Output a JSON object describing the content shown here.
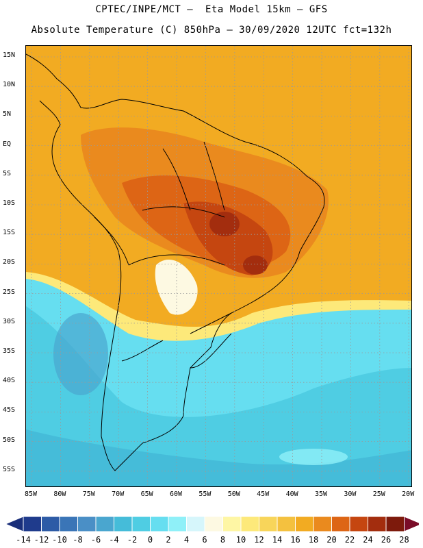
{
  "header": {
    "line1": "CPTEC/INPE/MCT –  Eta Model 15km – GFS",
    "line2": "Absolute Temperature (C) 850hPa – 30/09/2020 12UTC fct=132h"
  },
  "map": {
    "lat_labels": [
      "15N",
      "10N",
      "5N",
      "EQ",
      "5S",
      "10S",
      "15S",
      "20S",
      "25S",
      "30S",
      "35S",
      "40S",
      "45S",
      "50S",
      "55S"
    ],
    "lon_labels": [
      "85W",
      "80W",
      "75W",
      "70W",
      "65W",
      "60W",
      "55W",
      "50W",
      "45W",
      "40W",
      "35W",
      "30W",
      "25W",
      "20W"
    ],
    "grid": "dotted"
  },
  "legend": {
    "labels": [
      "-14",
      "-12",
      "-10",
      "-8",
      "-6",
      "-4",
      "-2",
      "0",
      "2",
      "4",
      "6",
      "8",
      "10",
      "12",
      "14",
      "16",
      "18",
      "20",
      "22",
      "24",
      "26",
      "28"
    ],
    "colors": [
      "#1f3b8c",
      "#2d5ba6",
      "#3a75b7",
      "#4a8fc6",
      "#4aa6cf",
      "#45bcd9",
      "#4fcde3",
      "#66def0",
      "#8ff0f8",
      "#d6f6fb",
      "#fdf9e2",
      "#fef6a4",
      "#fde97a",
      "#f8d55a",
      "#f4c13f",
      "#f2ab22",
      "#ea8a1e",
      "#dd6515",
      "#c54610",
      "#a32d0e",
      "#7d1a0c"
    ],
    "low_arrow_color": "#1a2f7a",
    "high_arrow_color": "#7a0c28"
  }
}
